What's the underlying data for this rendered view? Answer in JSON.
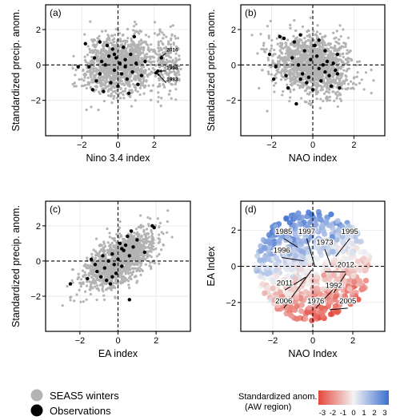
{
  "chart_data": [
    {
      "panel_label": "(a)",
      "type": "scatter",
      "xlabel": "Nino 3.4 index",
      "ylabel": "Standardized precip. anom.",
      "xlim": [
        -4,
        4
      ],
      "ylim": [
        -4,
        3.4
      ],
      "xticks": [
        -2,
        0,
        2
      ],
      "yticks": [
        -2,
        0,
        2
      ],
      "tick_labels_x": [
        "−2",
        "0",
        "2"
      ],
      "tick_labels_y": [
        "−2",
        "0",
        "2"
      ],
      "grid": true,
      "observations": [
        [
          -2.2,
          -0.1
        ],
        [
          -1.8,
          1.2
        ],
        [
          -1.6,
          -0.1
        ],
        [
          -1.4,
          -1.4
        ],
        [
          -1.3,
          0.4
        ],
        [
          -1.2,
          -0.9
        ],
        [
          -1.0,
          -0.5
        ],
        [
          -0.8,
          -1.5
        ],
        [
          -0.7,
          0.0
        ],
        [
          -0.6,
          1.1
        ],
        [
          -0.5,
          0.5
        ],
        [
          -0.4,
          -1.0
        ],
        [
          -0.3,
          0.9
        ],
        [
          -0.2,
          -0.3
        ],
        [
          -0.1,
          0.4
        ],
        [
          0.0,
          -1.2
        ],
        [
          0.1,
          0.1
        ],
        [
          0.2,
          -0.5
        ],
        [
          0.3,
          1.0
        ],
        [
          0.4,
          0.3
        ],
        [
          0.5,
          -0.8
        ],
        [
          0.6,
          -1.6
        ],
        [
          0.7,
          0.6
        ],
        [
          0.8,
          -0.4
        ],
        [
          0.9,
          1.6
        ],
        [
          1.0,
          0.1
        ],
        [
          1.1,
          -1.1
        ],
        [
          1.3,
          -0.6
        ],
        [
          1.5,
          0.2
        ],
        [
          2.1,
          -0.45
        ],
        [
          2.2,
          -0.35
        ],
        [
          2.4,
          0.4
        ],
        [
          -0.9,
          0.2
        ],
        [
          -0.2,
          0.6
        ],
        [
          0.4,
          -0.1
        ],
        [
          -1.0,
          1.3
        ]
      ],
      "annotations": [
        {
          "text": "2016",
          "x": 3.0,
          "y": 0.75,
          "target": [
            2.3,
            0.4
          ]
        },
        {
          "text": "1998",
          "x": 3.0,
          "y": -0.25,
          "target": [
            2.25,
            -0.35
          ]
        },
        {
          "text": "1983",
          "x": 3.0,
          "y": -0.9,
          "target": [
            2.15,
            -0.45
          ]
        }
      ]
    },
    {
      "panel_label": "(b)",
      "type": "scatter",
      "xlabel": "NAO index",
      "ylabel": "Standardized precip. anom.",
      "xlim": [
        -3.5,
        3.5
      ],
      "ylim": [
        -4,
        3.4
      ],
      "xticks": [
        -2,
        0,
        2
      ],
      "yticks": [
        -2,
        0,
        2
      ],
      "tick_labels_x": [
        "−2",
        "0",
        "2"
      ],
      "tick_labels_y": [
        "−2",
        "0",
        "2"
      ],
      "grid": true,
      "observations": [
        [
          -2.1,
          0.6
        ],
        [
          -1.9,
          -0.8
        ],
        [
          -1.6,
          1.6
        ],
        [
          -1.4,
          1.5
        ],
        [
          -1.3,
          -0.6
        ],
        [
          -1.2,
          -1.3
        ],
        [
          -1.0,
          0.4
        ],
        [
          -0.9,
          1.3
        ],
        [
          -0.8,
          -2.2
        ],
        [
          -0.7,
          0.0
        ],
        [
          -0.6,
          1.7
        ],
        [
          -0.5,
          -0.5
        ],
        [
          -0.4,
          0.8
        ],
        [
          -0.3,
          -1.0
        ],
        [
          -0.2,
          -0.7
        ],
        [
          -0.1,
          0.3
        ],
        [
          0.0,
          -1.4
        ],
        [
          0.1,
          1.1
        ],
        [
          0.2,
          0.5
        ],
        [
          0.3,
          -0.2
        ],
        [
          0.4,
          -0.9
        ],
        [
          0.5,
          0.0
        ],
        [
          0.6,
          -0.4
        ],
        [
          0.7,
          0.2
        ],
        [
          0.8,
          -0.6
        ],
        [
          0.9,
          -1.2
        ],
        [
          1.0,
          0.1
        ],
        [
          1.1,
          -0.3
        ],
        [
          1.2,
          0.6
        ],
        [
          1.3,
          -1.3
        ],
        [
          -1.8,
          -0.1
        ],
        [
          0.3,
          1.4
        ],
        [
          -0.6,
          -0.8
        ],
        [
          0.6,
          0.8
        ],
        [
          1.2,
          -0.5
        ]
      ]
    },
    {
      "panel_label": "(c)",
      "type": "scatter",
      "xlabel": "EA index",
      "ylabel": "Standardized precip. anom.",
      "xlim": [
        -3.8,
        3.8
      ],
      "ylim": [
        -4,
        3.4
      ],
      "xticks": [
        -2,
        0,
        2
      ],
      "yticks": [
        -2,
        0,
        2
      ],
      "tick_labels_x": [
        "−2",
        "0",
        "2"
      ],
      "tick_labels_y": [
        "−2",
        "0",
        "2"
      ],
      "grid": true,
      "observations": [
        [
          -2.5,
          -1.3
        ],
        [
          -1.6,
          -1.0
        ],
        [
          -1.4,
          0.1
        ],
        [
          -1.2,
          -0.2
        ],
        [
          -1.1,
          -0.6
        ],
        [
          -0.9,
          -0.9
        ],
        [
          -0.8,
          0.3
        ],
        [
          -0.7,
          -0.4
        ],
        [
          -0.6,
          -1.1
        ],
        [
          -0.5,
          0.0
        ],
        [
          -0.4,
          -1.3
        ],
        [
          -0.3,
          0.4
        ],
        [
          -0.2,
          -0.2
        ],
        [
          -0.1,
          -0.7
        ],
        [
          0.0,
          0.1
        ],
        [
          0.1,
          1.0
        ],
        [
          0.2,
          -0.3
        ],
        [
          0.3,
          0.6
        ],
        [
          0.4,
          0.9
        ],
        [
          0.5,
          1.4
        ],
        [
          0.6,
          0.3
        ],
        [
          0.7,
          1.7
        ],
        [
          0.8,
          0.8
        ],
        [
          1.0,
          1.2
        ],
        [
          1.4,
          0.5
        ],
        [
          1.8,
          2.0
        ],
        [
          1.9,
          1.9
        ],
        [
          0.6,
          -2.2
        ],
        [
          0.2,
          0.7
        ],
        [
          -0.3,
          -0.9
        ]
      ]
    },
    {
      "panel_label": "(d)",
      "type": "scatter",
      "xlabel": "NAO Index",
      "ylabel": "EA Index",
      "xlim": [
        -3.6,
        3.6
      ],
      "ylim": [
        -3.6,
        3.6
      ],
      "xticks": [
        -2,
        0,
        2
      ],
      "yticks": [
        -2,
        0,
        2
      ],
      "tick_labels_x": [
        "−2",
        "0",
        "2"
      ],
      "tick_labels_y": [
        "−2",
        "0",
        "2"
      ],
      "grid": true,
      "color_by": "standardized anomaly",
      "annotations": [
        {
          "text": "1985",
          "x": -1.45,
          "y": 1.8,
          "target": [
            -0.75,
            1.05
          ]
        },
        {
          "text": "1997",
          "x": -0.3,
          "y": 1.8,
          "target": [
            0.1,
            0.0
          ]
        },
        {
          "text": "1995",
          "x": 1.85,
          "y": 1.8,
          "target": [
            1.15,
            0.55
          ]
        },
        {
          "text": "1973",
          "x": 0.6,
          "y": 1.2,
          "target": [
            0.9,
            0.05
          ]
        },
        {
          "text": "1996",
          "x": -1.55,
          "y": 0.75,
          "target": [
            -0.45,
            0.3
          ]
        },
        {
          "text": "2012",
          "x": 1.65,
          "y": -0.05,
          "target": [
            0.6,
            -0.3
          ]
        },
        {
          "text": "2011",
          "x": -1.4,
          "y": -1.05,
          "target": [
            -0.35,
            -0.6
          ]
        },
        {
          "text": "1992",
          "x": 1.05,
          "y": -1.2,
          "target": [
            1.65,
            -0.4
          ]
        },
        {
          "text": "2006",
          "x": -1.45,
          "y": -2.05,
          "target": [
            -0.05,
            -0.2
          ]
        },
        {
          "text": "1976",
          "x": 0.15,
          "y": -2.05,
          "target": [
            1.0,
            -1.3
          ]
        },
        {
          "text": "2005",
          "x": 1.75,
          "y": -2.05,
          "target": [
            0.85,
            -2.4
          ]
        }
      ]
    }
  ],
  "colors": {
    "seas5": "#b3b3b3",
    "observation": "#000000",
    "cold": "#3d6fd0",
    "neutral": "#f3f3f3",
    "warm": "#e5473c"
  },
  "legend": {
    "seas5_label": "SEAS5 winters",
    "obs_label": "Observations"
  },
  "colorbar": {
    "title": "Standardized anom.",
    "subtitle": "(AW region)",
    "ticks": [
      "-3",
      "-2",
      "-1",
      "0",
      "1",
      "2",
      "3"
    ],
    "range": [
      -3,
      3
    ]
  }
}
